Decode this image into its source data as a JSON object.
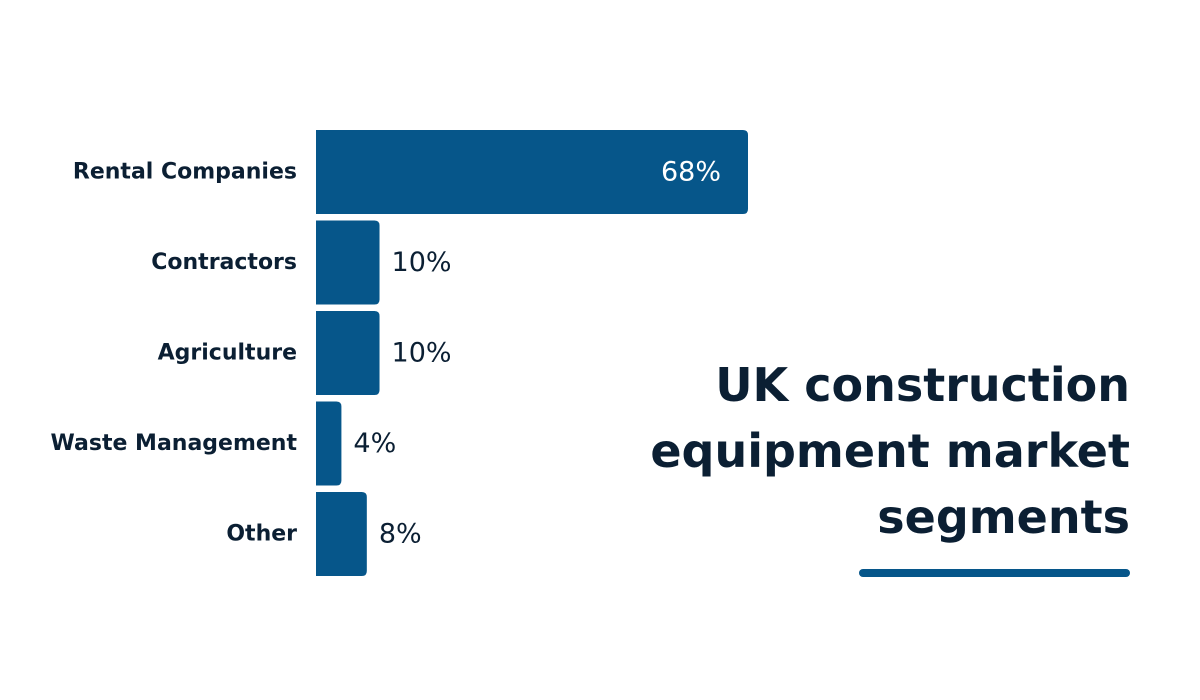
{
  "title_lines": [
    "UK construction",
    "equipment market",
    "segments"
  ],
  "colors": {
    "bar": "#06568a",
    "text": "#0b1f33",
    "accent_rule": "#06568a"
  },
  "chart_data": {
    "type": "bar",
    "orientation": "horizontal",
    "title": "UK construction equipment market segments",
    "categories": [
      "Rental Companies",
      "Contractors",
      "Agriculture",
      "Waste Management",
      "Other"
    ],
    "values": [
      68,
      10,
      10,
      4,
      8
    ],
    "value_labels": [
      "68%",
      "10%",
      "10%",
      "4%",
      "8%"
    ],
    "unit": "%",
    "xlabel": "",
    "ylabel": "",
    "grid": false,
    "legend": "none"
  }
}
